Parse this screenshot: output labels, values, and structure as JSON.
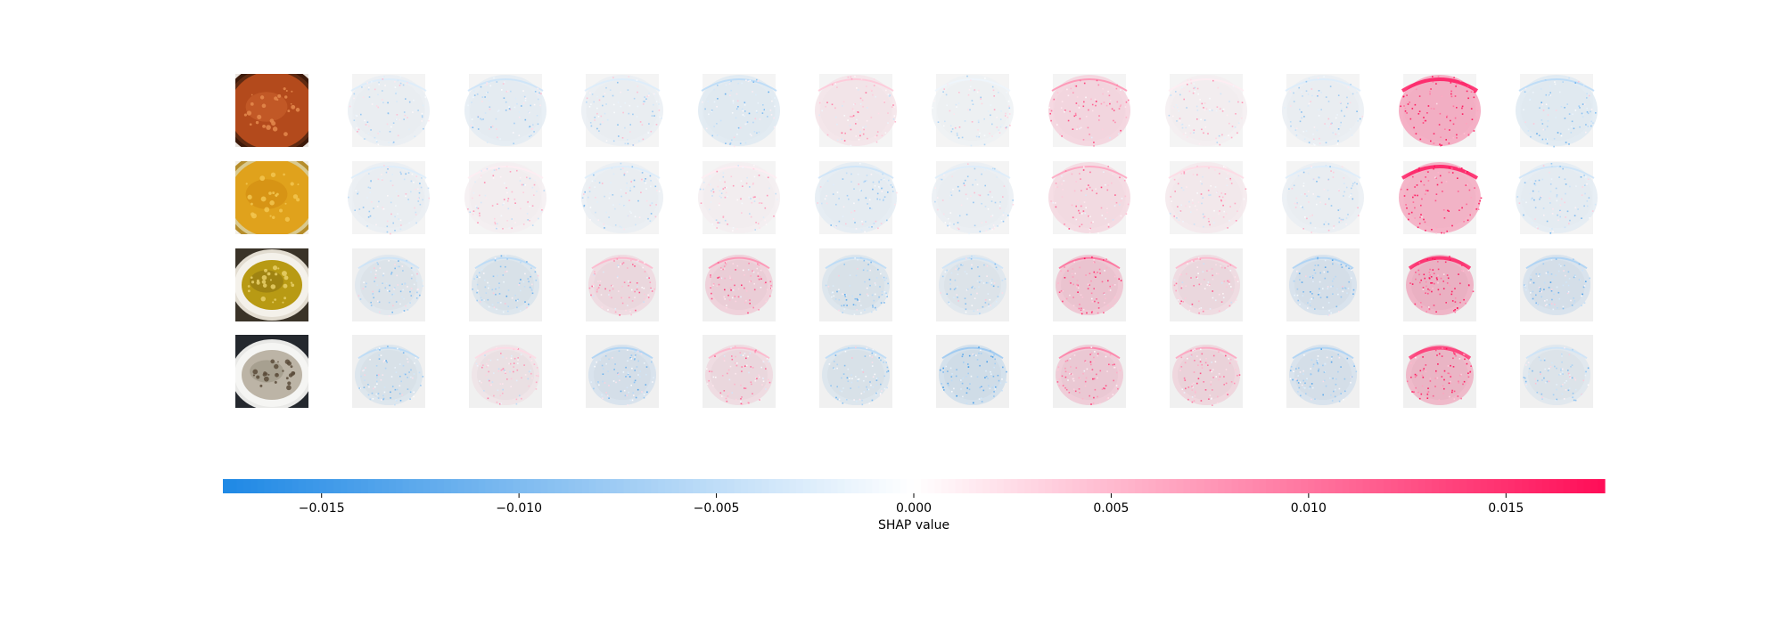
{
  "chart_data": {
    "type": "heatmap",
    "title": "",
    "rows": [
      {
        "photo": "tomato-soup-photo",
        "values": [
          -0.002,
          -0.003,
          -0.002,
          -0.004,
          0.003,
          -0.001,
          0.006,
          0.001,
          -0.002,
          0.014,
          -0.004
        ]
      },
      {
        "photo": "yellow-lentil-soup-photo",
        "values": [
          -0.002,
          0.001,
          -0.002,
          0.001,
          -0.003,
          -0.002,
          0.005,
          0.002,
          -0.002,
          0.013,
          -0.003
        ]
      },
      {
        "photo": "vegetable-curry-photo",
        "values": [
          -0.003,
          -0.004,
          0.004,
          0.006,
          -0.004,
          -0.003,
          0.008,
          0.004,
          -0.005,
          0.012,
          -0.005
        ]
      },
      {
        "photo": "cream-mushroom-soup-photo",
        "values": [
          -0.004,
          0.002,
          -0.005,
          0.004,
          -0.004,
          -0.006,
          0.007,
          0.005,
          -0.005,
          0.011,
          -0.003
        ]
      }
    ],
    "colorbar": {
      "label": "SHAP value",
      "range": [
        -0.0175,
        0.0175
      ],
      "ticks": [
        -0.015,
        -0.01,
        -0.005,
        0,
        0.005,
        0.01,
        0.015
      ],
      "tick_labels": [
        "−0.015",
        "−0.010",
        "−0.005",
        "0.000",
        "0.005",
        "0.010",
        "0.015"
      ],
      "negative_color": "#1e88e5",
      "positive_color": "#ff0d57",
      "neutral_color": "#ffffff"
    }
  }
}
